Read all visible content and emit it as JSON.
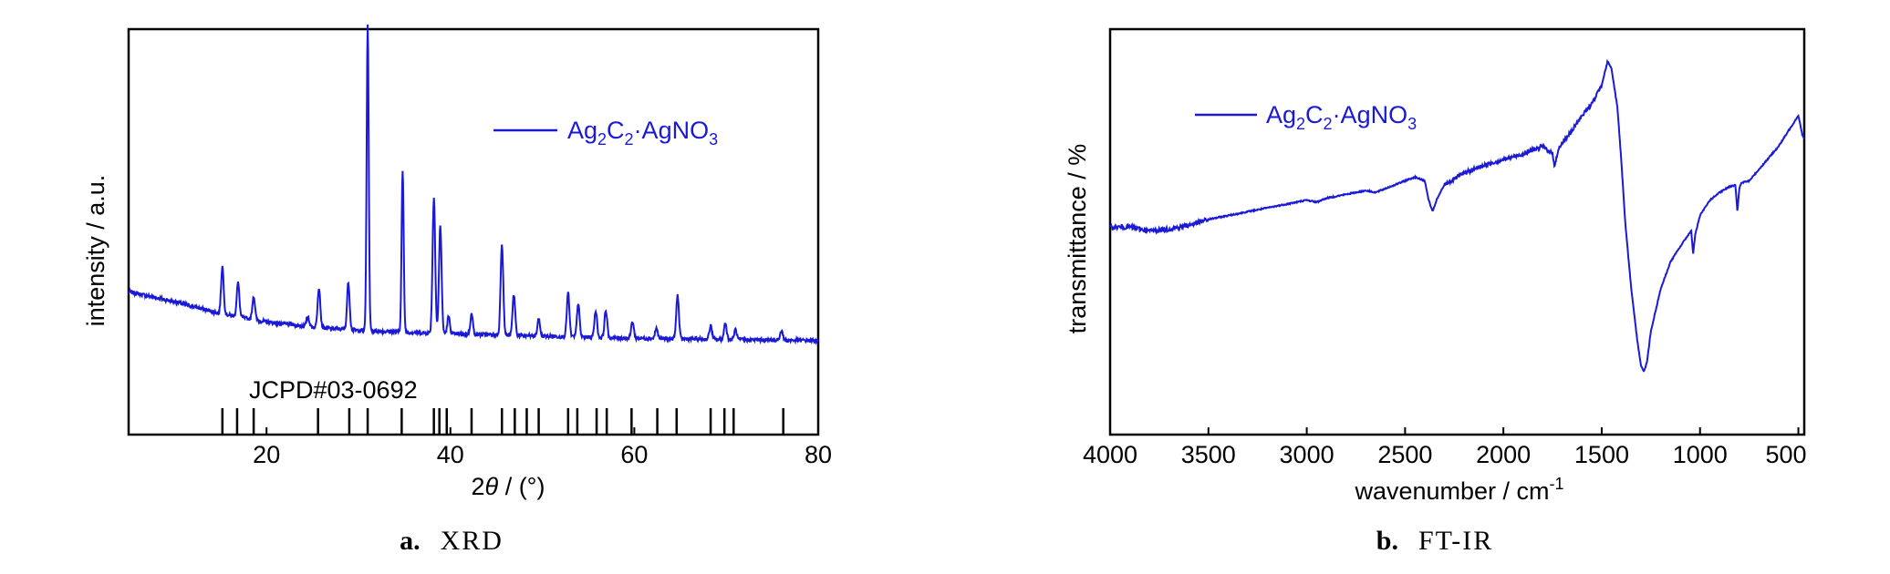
{
  "colors": {
    "series": "#1a1ad6",
    "axes": "#000000"
  },
  "chart_data": [
    {
      "type": "line",
      "panel_label": "a.",
      "panel_title": "XRD",
      "xlabel_prefix": "2",
      "xlabel_symbol": "θ",
      "xlabel_suffix": " / (°)",
      "ylabel": "intensity / a.u.",
      "xlim": [
        5,
        80
      ],
      "ylim": [
        0,
        100
      ],
      "xticks": [
        20,
        40,
        60,
        80
      ],
      "yticks_shown": false,
      "legend": {
        "position": "top-right",
        "base": "Ag",
        "sub1": "2",
        "mid": "C",
        "sub2": "2",
        "tail": "·AgNO",
        "sub3": "3"
      },
      "reference_label": "JCPD#03-0692",
      "reference_lines": [
        15.2,
        16.8,
        18.6,
        25.6,
        29.0,
        31.0,
        34.7,
        38.2,
        38.8,
        39.6,
        42.3,
        45.6,
        47.0,
        48.3,
        49.6,
        52.8,
        53.8,
        55.9,
        57.0,
        59.7,
        62.5,
        64.6,
        68.3,
        69.8,
        70.8,
        76.2
      ],
      "baseline": [
        [
          5,
          27
        ],
        [
          10,
          24
        ],
        [
          15,
          20.5
        ],
        [
          20,
          18
        ],
        [
          25,
          16.5
        ],
        [
          30,
          15.5
        ],
        [
          40,
          14.5
        ],
        [
          50,
          13.8
        ],
        [
          60,
          13.2
        ],
        [
          70,
          12.8
        ],
        [
          80,
          12.5
        ]
      ],
      "peaks": [
        {
          "x": 15.2,
          "h": 14
        },
        {
          "x": 16.9,
          "h": 10
        },
        {
          "x": 18.6,
          "h": 7
        },
        {
          "x": 24.5,
          "h": 3
        },
        {
          "x": 25.7,
          "h": 12
        },
        {
          "x": 28.9,
          "h": 14
        },
        {
          "x": 31.0,
          "h": 91
        },
        {
          "x": 34.8,
          "h": 48
        },
        {
          "x": 38.2,
          "h": 40
        },
        {
          "x": 38.9,
          "h": 32
        },
        {
          "x": 39.8,
          "h": 5
        },
        {
          "x": 42.3,
          "h": 6
        },
        {
          "x": 45.6,
          "h": 27
        },
        {
          "x": 46.9,
          "h": 12
        },
        {
          "x": 49.6,
          "h": 5
        },
        {
          "x": 52.8,
          "h": 13
        },
        {
          "x": 53.9,
          "h": 10
        },
        {
          "x": 55.8,
          "h": 8
        },
        {
          "x": 56.9,
          "h": 8
        },
        {
          "x": 59.8,
          "h": 5
        },
        {
          "x": 62.4,
          "h": 3
        },
        {
          "x": 64.7,
          "h": 13
        },
        {
          "x": 68.3,
          "h": 4
        },
        {
          "x": 69.9,
          "h": 5
        },
        {
          "x": 71.0,
          "h": 3
        },
        {
          "x": 76.0,
          "h": 3
        }
      ]
    },
    {
      "type": "line",
      "panel_label": "b.",
      "panel_title": "FT-IR",
      "xlabel_prefix": "wavenumber / cm",
      "xlabel_sup": "-1",
      "ylabel": "transmittance / %",
      "xlim": [
        4000,
        470
      ],
      "ylim": [
        0,
        100
      ],
      "xticks": [
        4000,
        3500,
        3000,
        2500,
        2000,
        1500,
        1000,
        500
      ],
      "yticks_shown": false,
      "legend": {
        "position": "top-left",
        "base": "Ag",
        "sub1": "2",
        "mid": "C",
        "sub2": "2",
        "tail": "·AgNO",
        "sub3": "3"
      },
      "points": [
        [
          4000,
          51
        ],
        [
          3900,
          51
        ],
        [
          3800,
          50
        ],
        [
          3700,
          50.5
        ],
        [
          3600,
          51.5
        ],
        [
          3500,
          53
        ],
        [
          3400,
          54
        ],
        [
          3300,
          55
        ],
        [
          3200,
          56
        ],
        [
          3100,
          57
        ],
        [
          3000,
          58
        ],
        [
          2950,
          57.5
        ],
        [
          2900,
          58.5
        ],
        [
          2800,
          59.5
        ],
        [
          2700,
          60.5
        ],
        [
          2650,
          60
        ],
        [
          2600,
          61
        ],
        [
          2500,
          63
        ],
        [
          2450,
          64
        ],
        [
          2400,
          63
        ],
        [
          2380,
          58
        ],
        [
          2360,
          55
        ],
        [
          2340,
          58
        ],
        [
          2300,
          62
        ],
        [
          2200,
          65
        ],
        [
          2100,
          67
        ],
        [
          2000,
          68.5
        ],
        [
          1900,
          70
        ],
        [
          1800,
          72
        ],
        [
          1750,
          70
        ],
        [
          1740,
          67
        ],
        [
          1720,
          71
        ],
        [
          1700,
          73
        ],
        [
          1650,
          76
        ],
        [
          1600,
          80
        ],
        [
          1550,
          83
        ],
        [
          1500,
          88
        ],
        [
          1470,
          94
        ],
        [
          1450,
          92
        ],
        [
          1420,
          82
        ],
        [
          1400,
          68
        ],
        [
          1380,
          52
        ],
        [
          1350,
          35
        ],
        [
          1320,
          22
        ],
        [
          1300,
          15
        ],
        [
          1285,
          13.5
        ],
        [
          1270,
          16
        ],
        [
          1250,
          24
        ],
        [
          1200,
          35
        ],
        [
          1150,
          42
        ],
        [
          1100,
          46
        ],
        [
          1060,
          49
        ],
        [
          1045,
          50
        ],
        [
          1035,
          44
        ],
        [
          1025,
          49
        ],
        [
          1000,
          54
        ],
        [
          950,
          58
        ],
        [
          900,
          60
        ],
        [
          850,
          61.5
        ],
        [
          820,
          62
        ],
        [
          810,
          55
        ],
        [
          800,
          61
        ],
        [
          790,
          62.5
        ],
        [
          750,
          63
        ],
        [
          700,
          66
        ],
        [
          650,
          69
        ],
        [
          600,
          72
        ],
        [
          550,
          76
        ],
        [
          500,
          80
        ],
        [
          480,
          75
        ],
        [
          470,
          74
        ]
      ]
    }
  ]
}
